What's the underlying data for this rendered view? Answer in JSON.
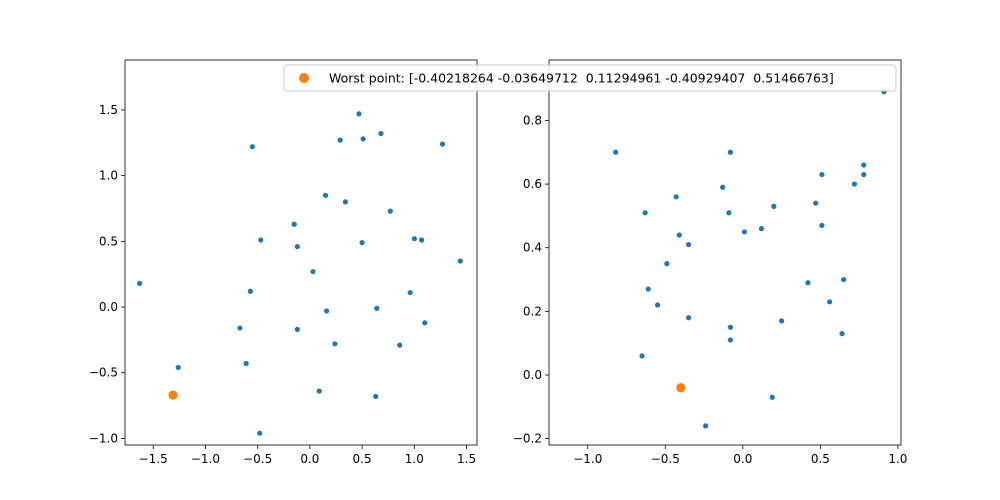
{
  "chart_data": [
    {
      "type": "scatter",
      "xlim": [
        -1.77,
        1.6
      ],
      "ylim": [
        -1.05,
        1.88
      ],
      "xticks": [
        -1.5,
        -1.0,
        -0.5,
        0.0,
        0.5,
        1.0,
        1.5
      ],
      "xtick_labels": [
        "−1.5",
        "−1.0",
        "−0.5",
        "0.0",
        "0.5",
        "1.0",
        "1.5"
      ],
      "yticks": [
        -1.0,
        -0.5,
        0.0,
        0.5,
        1.0,
        1.5
      ],
      "ytick_labels": [
        "−1.0",
        "−0.5",
        "0.0",
        "0.5",
        "1.0",
        "1.5"
      ],
      "series": [
        {
          "color": "#1f77b4",
          "points": [
            [
              -1.63,
              0.18
            ],
            [
              -1.26,
              -0.46
            ],
            [
              -0.55,
              1.22
            ],
            [
              -0.47,
              0.51
            ],
            [
              -0.57,
              0.12
            ],
            [
              -0.67,
              -0.16
            ],
            [
              -0.61,
              -0.43
            ],
            [
              -0.48,
              -0.96
            ],
            [
              -0.15,
              0.63
            ],
            [
              -0.12,
              0.46
            ],
            [
              -0.12,
              -0.17
            ],
            [
              0.03,
              0.27
            ],
            [
              0.15,
              0.85
            ],
            [
              0.16,
              -0.03
            ],
            [
              0.24,
              -0.28
            ],
            [
              0.29,
              1.27
            ],
            [
              0.34,
              0.8
            ],
            [
              0.47,
              1.47
            ],
            [
              0.51,
              1.28
            ],
            [
              0.5,
              0.49
            ],
            [
              0.09,
              -0.64
            ],
            [
              0.63,
              -0.68
            ],
            [
              0.68,
              1.32
            ],
            [
              0.64,
              -0.01
            ],
            [
              0.77,
              0.73
            ],
            [
              0.86,
              -0.29
            ],
            [
              0.96,
              0.11
            ],
            [
              1.0,
              0.52
            ],
            [
              1.07,
              0.51
            ],
            [
              1.1,
              -0.12
            ],
            [
              1.27,
              1.24
            ],
            [
              1.44,
              0.35
            ]
          ]
        },
        {
          "name": "Worst point: [-0.40218264 -0.03649712  0.11294961 -0.40929407  0.51466763]",
          "color": "#ff7f0e",
          "points": [
            [
              -1.31,
              -0.67
            ]
          ]
        }
      ]
    },
    {
      "type": "scatter",
      "xlim": [
        -1.25,
        1.02
      ],
      "ylim": [
        -0.22,
        0.99
      ],
      "xticks": [
        -1.0,
        -0.5,
        0.0,
        0.5,
        1.0
      ],
      "xtick_labels": [
        "−1.0",
        "−0.5",
        "0.0",
        "0.5",
        "1.0"
      ],
      "yticks": [
        -0.2,
        0.0,
        0.2,
        0.4,
        0.6,
        0.8
      ],
      "ytick_labels": [
        "−0.2",
        "0.0",
        "0.2",
        "0.4",
        "0.6",
        "0.8"
      ],
      "series": [
        {
          "color": "#1f77b4",
          "points": [
            [
              -0.82,
              0.7
            ],
            [
              -0.63,
              0.51
            ],
            [
              -0.61,
              0.27
            ],
            [
              -0.55,
              0.22
            ],
            [
              -0.65,
              0.06
            ],
            [
              -0.49,
              0.35
            ],
            [
              -0.43,
              0.56
            ],
            [
              -0.41,
              0.44
            ],
            [
              -0.35,
              0.41
            ],
            [
              -0.35,
              0.18
            ],
            [
              -0.24,
              -0.16
            ],
            [
              -0.13,
              0.59
            ],
            [
              -0.08,
              0.7
            ],
            [
              -0.09,
              0.51
            ],
            [
              -0.08,
              0.15
            ],
            [
              -0.08,
              0.11
            ],
            [
              0.01,
              0.45
            ],
            [
              0.12,
              0.46
            ],
            [
              0.2,
              0.53
            ],
            [
              0.19,
              -0.07
            ],
            [
              0.25,
              0.17
            ],
            [
              0.42,
              0.29
            ],
            [
              0.47,
              0.54
            ],
            [
              0.51,
              0.63
            ],
            [
              0.51,
              0.47
            ],
            [
              0.56,
              0.23
            ],
            [
              0.64,
              0.13
            ],
            [
              0.65,
              0.3
            ],
            [
              0.72,
              0.6
            ],
            [
              0.78,
              0.63
            ],
            [
              0.78,
              0.66
            ],
            [
              0.91,
              0.89
            ]
          ]
        },
        {
          "color": "#ff7f0e",
          "points": [
            [
              -0.4,
              -0.04
            ]
          ]
        }
      ]
    }
  ],
  "legend": {
    "label": "Worst point: [-0.40218264 -0.03649712  0.11294961 -0.40929407  0.51466763]",
    "marker_color": "#ff7f0e"
  }
}
